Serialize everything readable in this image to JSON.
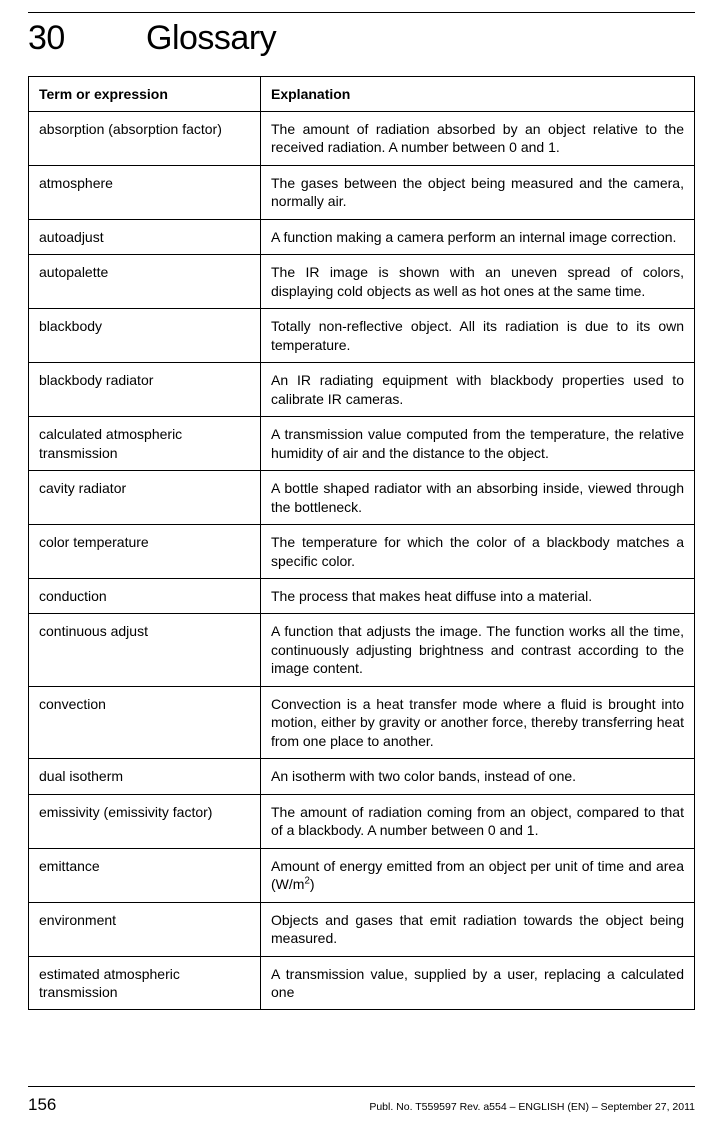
{
  "chapter": {
    "number": "30",
    "title": "Glossary"
  },
  "table": {
    "header": {
      "term": "Term or expression",
      "explanation": "Explanation"
    },
    "rows": [
      {
        "term": "absorption (absorption factor)",
        "explanation": "The amount of radiation absorbed by an object relative to the received radiation. A number between 0 and 1."
      },
      {
        "term": "atmosphere",
        "explanation": "The gases between the object being measured and the camera, normally air."
      },
      {
        "term": "autoadjust",
        "explanation": "A function making a camera perform an internal image correction."
      },
      {
        "term": "autopalette",
        "explanation": "The IR image is shown with an uneven spread of colors, displaying cold objects as well as hot ones at the same time."
      },
      {
        "term": "blackbody",
        "explanation": "Totally non-reflective object. All its radiation is due to its own temperature."
      },
      {
        "term": "blackbody radiator",
        "explanation": "An IR radiating equipment with blackbody properties used to calibrate IR cameras."
      },
      {
        "term": "calculated atmospheric transmission",
        "explanation": "A transmission value computed from the temperature, the relative humidity of air and the distance to the object."
      },
      {
        "term": "cavity radiator",
        "explanation": "A bottle shaped radiator with an absorbing inside, viewed through the bottleneck."
      },
      {
        "term": "color temperature",
        "explanation": "The temperature for which the color of a blackbody matches a specific color."
      },
      {
        "term": "conduction",
        "explanation": "The process that makes heat diffuse into a material."
      },
      {
        "term": "continuous adjust",
        "explanation": "A function that adjusts the image. The function works all the time, continuously adjusting brightness and contrast according to the image content."
      },
      {
        "term": "convection",
        "explanation": "Convection is a heat transfer mode where a fluid is brought into motion, either by gravity or another force, thereby transferring heat from one place to another."
      },
      {
        "term": "dual isotherm",
        "explanation": "An isotherm with two color bands, instead of one."
      },
      {
        "term": "emissivity (emissivity factor)",
        "explanation": "The amount of radiation coming from an object, compared to that of a blackbody. A number between 0 and 1."
      },
      {
        "term": "emittance",
        "explanation": "Amount of energy emitted from an object per unit of time and area (W/m²)"
      },
      {
        "term": "environment",
        "explanation": "Objects and gases that emit radiation towards the object being measured."
      },
      {
        "term": "estimated atmospheric transmission",
        "explanation": "A transmission value, supplied by a user, replacing a calculated one"
      }
    ]
  },
  "footer": {
    "page_number": "156",
    "publication": "Publ. No. T559597 Rev. a554 – ENGLISH (EN) – September 27, 2011"
  }
}
